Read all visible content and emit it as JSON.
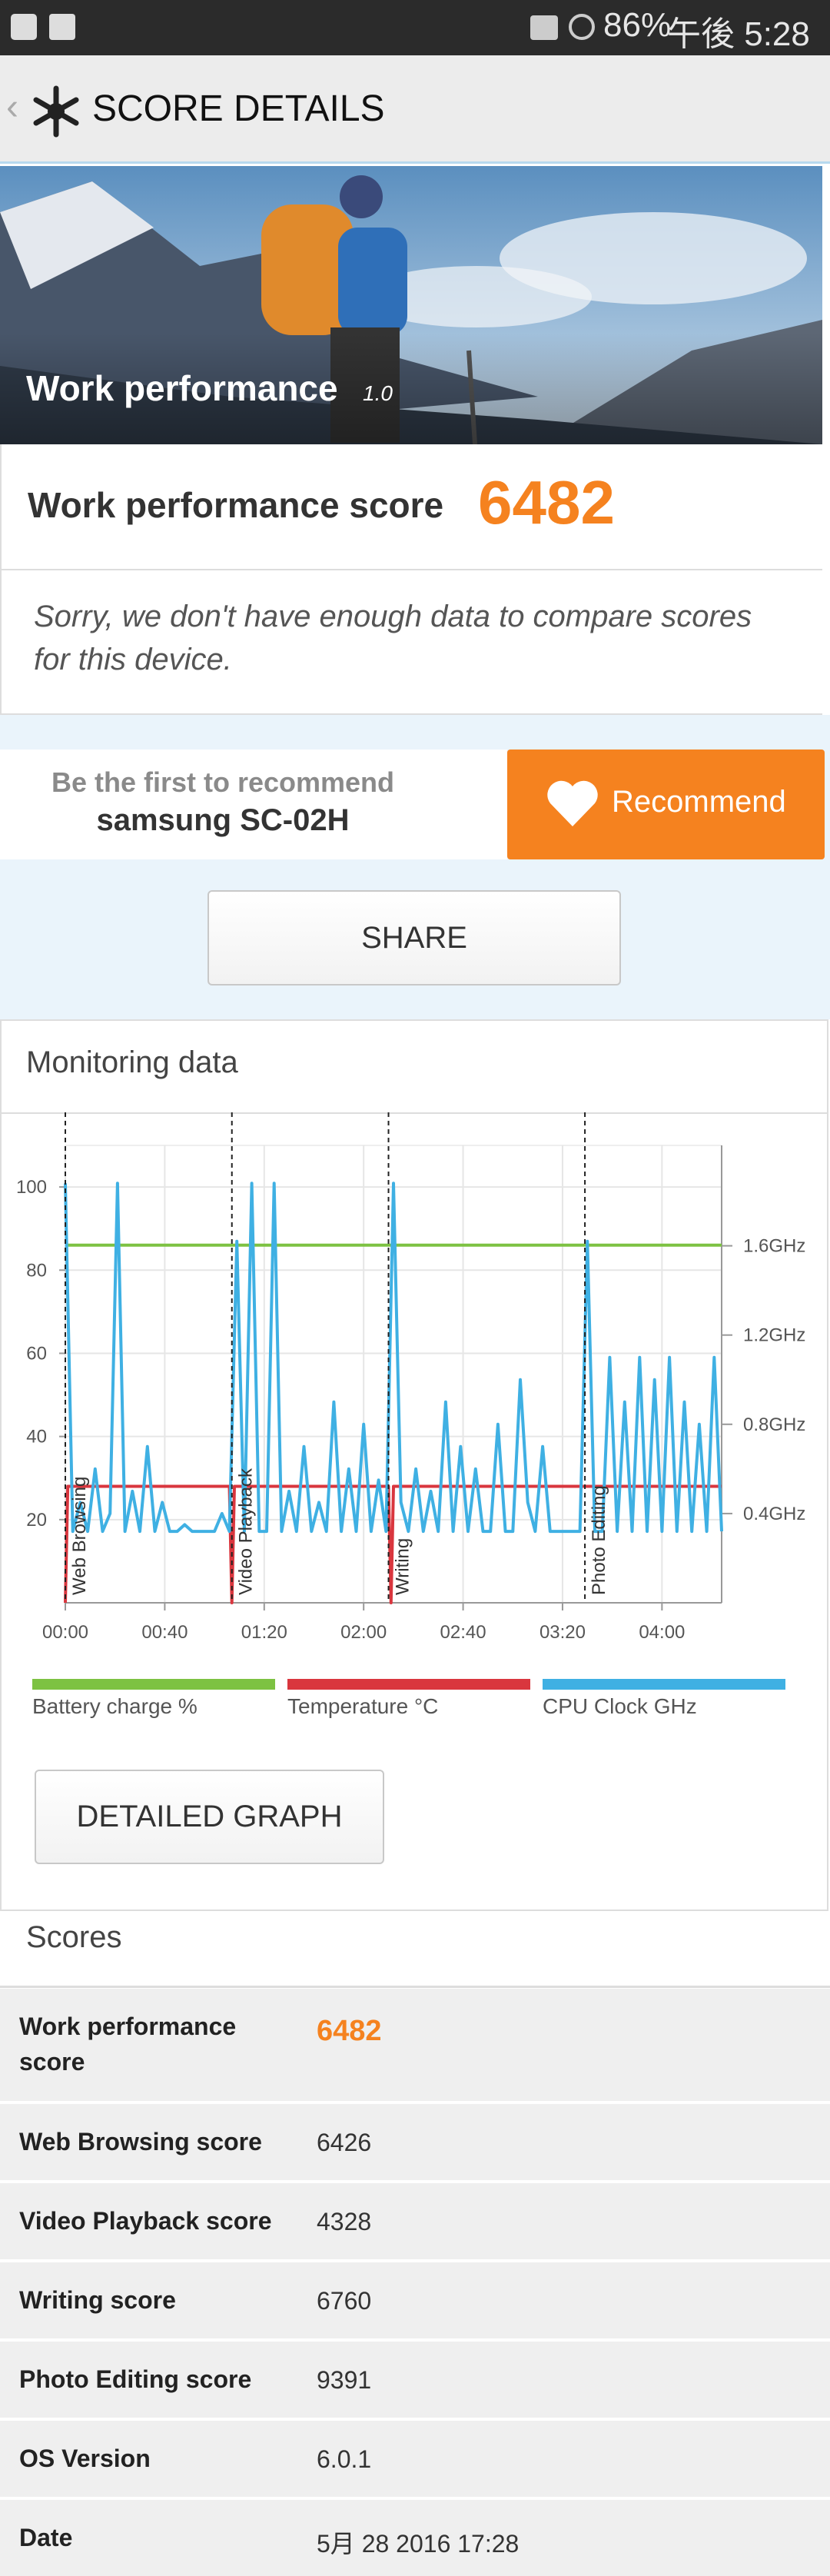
{
  "status_bar": {
    "battery": "86%",
    "time": "午後 5:28"
  },
  "header": {
    "title": "SCORE DETAILS"
  },
  "hero": {
    "title": "Work performance",
    "version": "1.0"
  },
  "score": {
    "label": "Work performance score",
    "value": 6482
  },
  "notice": "Sorry, we don't have enough data to compare scores for this device.",
  "recommend": {
    "prompt": "Be the first to recommend",
    "device": "samsung SC-02H",
    "button": "Recommend"
  },
  "share_button": "SHARE",
  "monitoring": {
    "title": "Monitoring data",
    "chart_data": {
      "type": "line",
      "xlim": [
        0,
        264
      ],
      "xticks": [
        {
          "value": 0,
          "label": "00:00"
        },
        {
          "value": 40,
          "label": "00:40"
        },
        {
          "value": 80,
          "label": "01:20"
        },
        {
          "value": 120,
          "label": "02:00"
        },
        {
          "value": 160,
          "label": "02:40"
        },
        {
          "value": 200,
          "label": "03:20"
        },
        {
          "value": 240,
          "label": "04:00"
        }
      ],
      "ylim": [
        0,
        110
      ],
      "yticks": [
        20,
        40,
        60,
        80,
        100
      ],
      "y2lim": [
        0,
        2.05
      ],
      "y2ticks": [
        {
          "value": 0.4,
          "label": "0.4GHz"
        },
        {
          "value": 0.8,
          "label": "0.8GHz"
        },
        {
          "value": 1.2,
          "label": "1.2GHz"
        },
        {
          "value": 1.6,
          "label": "1.6GHz"
        }
      ],
      "grid": true,
      "events": [
        {
          "x": 0,
          "label": "Web Browsing"
        },
        {
          "x": 67,
          "label": "Video Playback"
        },
        {
          "x": 130,
          "label": "Writing"
        },
        {
          "x": 209,
          "label": "Photo Editing"
        }
      ],
      "series": [
        {
          "name": "Battery charge %",
          "color": "#7dc242",
          "axis": "y",
          "x": [
            0,
            264
          ],
          "values": [
            86,
            86
          ]
        },
        {
          "name": "Temperature °C",
          "color": "#d9363e",
          "axis": "y",
          "x": [
            0,
            1,
            66,
            67,
            68,
            130,
            131,
            132,
            264
          ],
          "values": [
            0,
            28,
            28,
            0,
            28,
            28,
            0,
            28,
            28
          ]
        },
        {
          "name": "CPU Clock GHz",
          "color": "#3fb0e3",
          "axis": "y2",
          "x": [
            0,
            3,
            6,
            9,
            12,
            15,
            18,
            21,
            24,
            27,
            30,
            33,
            36,
            39,
            42,
            45,
            48,
            51,
            54,
            57,
            60,
            63,
            66,
            69,
            72,
            75,
            78,
            81,
            84,
            87,
            90,
            93,
            96,
            99,
            102,
            105,
            108,
            111,
            114,
            117,
            120,
            123,
            126,
            129,
            132,
            135,
            138,
            141,
            144,
            147,
            150,
            153,
            156,
            159,
            162,
            165,
            168,
            171,
            174,
            177,
            180,
            183,
            186,
            189,
            192,
            195,
            198,
            201,
            204,
            207,
            210,
            213,
            216,
            219,
            222,
            225,
            228,
            231,
            234,
            237,
            240,
            243,
            246,
            249,
            252,
            255,
            258,
            261,
            264
          ],
          "values": [
            1.88,
            0.32,
            0.45,
            0.32,
            0.6,
            0.32,
            0.4,
            1.88,
            0.32,
            0.5,
            0.32,
            0.7,
            0.32,
            0.45,
            0.32,
            0.32,
            0.35,
            0.32,
            0.32,
            0.32,
            0.32,
            0.4,
            0.32,
            1.62,
            0.32,
            1.88,
            0.32,
            0.32,
            1.88,
            0.32,
            0.5,
            0.32,
            0.7,
            0.32,
            0.45,
            0.32,
            0.9,
            0.32,
            0.6,
            0.32,
            0.8,
            0.32,
            0.55,
            0.32,
            1.88,
            0.45,
            0.32,
            0.6,
            0.32,
            0.5,
            0.32,
            0.9,
            0.32,
            0.7,
            0.32,
            0.6,
            0.32,
            0.32,
            0.8,
            0.32,
            0.32,
            1.0,
            0.45,
            0.32,
            0.7,
            0.32,
            0.32,
            0.32,
            0.32,
            0.32,
            1.62,
            0.32,
            0.32,
            1.1,
            0.32,
            0.9,
            0.32,
            1.1,
            0.32,
            1.0,
            0.32,
            1.1,
            0.32,
            0.9,
            0.32,
            0.8,
            0.32,
            1.1,
            0.32
          ]
        }
      ]
    },
    "button": "DETAILED GRAPH"
  },
  "scores": {
    "title": "Scores",
    "rows": [
      [
        "Work performance score",
        6482
      ],
      [
        "Web Browsing score",
        6426
      ],
      [
        "Video Playback score",
        4328
      ],
      [
        "Writing score",
        6760
      ],
      [
        "Photo Editing score",
        9391
      ],
      [
        "OS Version",
        "6.0.1"
      ],
      [
        "Date",
        "5月 28 2016 17:28"
      ]
    ]
  }
}
